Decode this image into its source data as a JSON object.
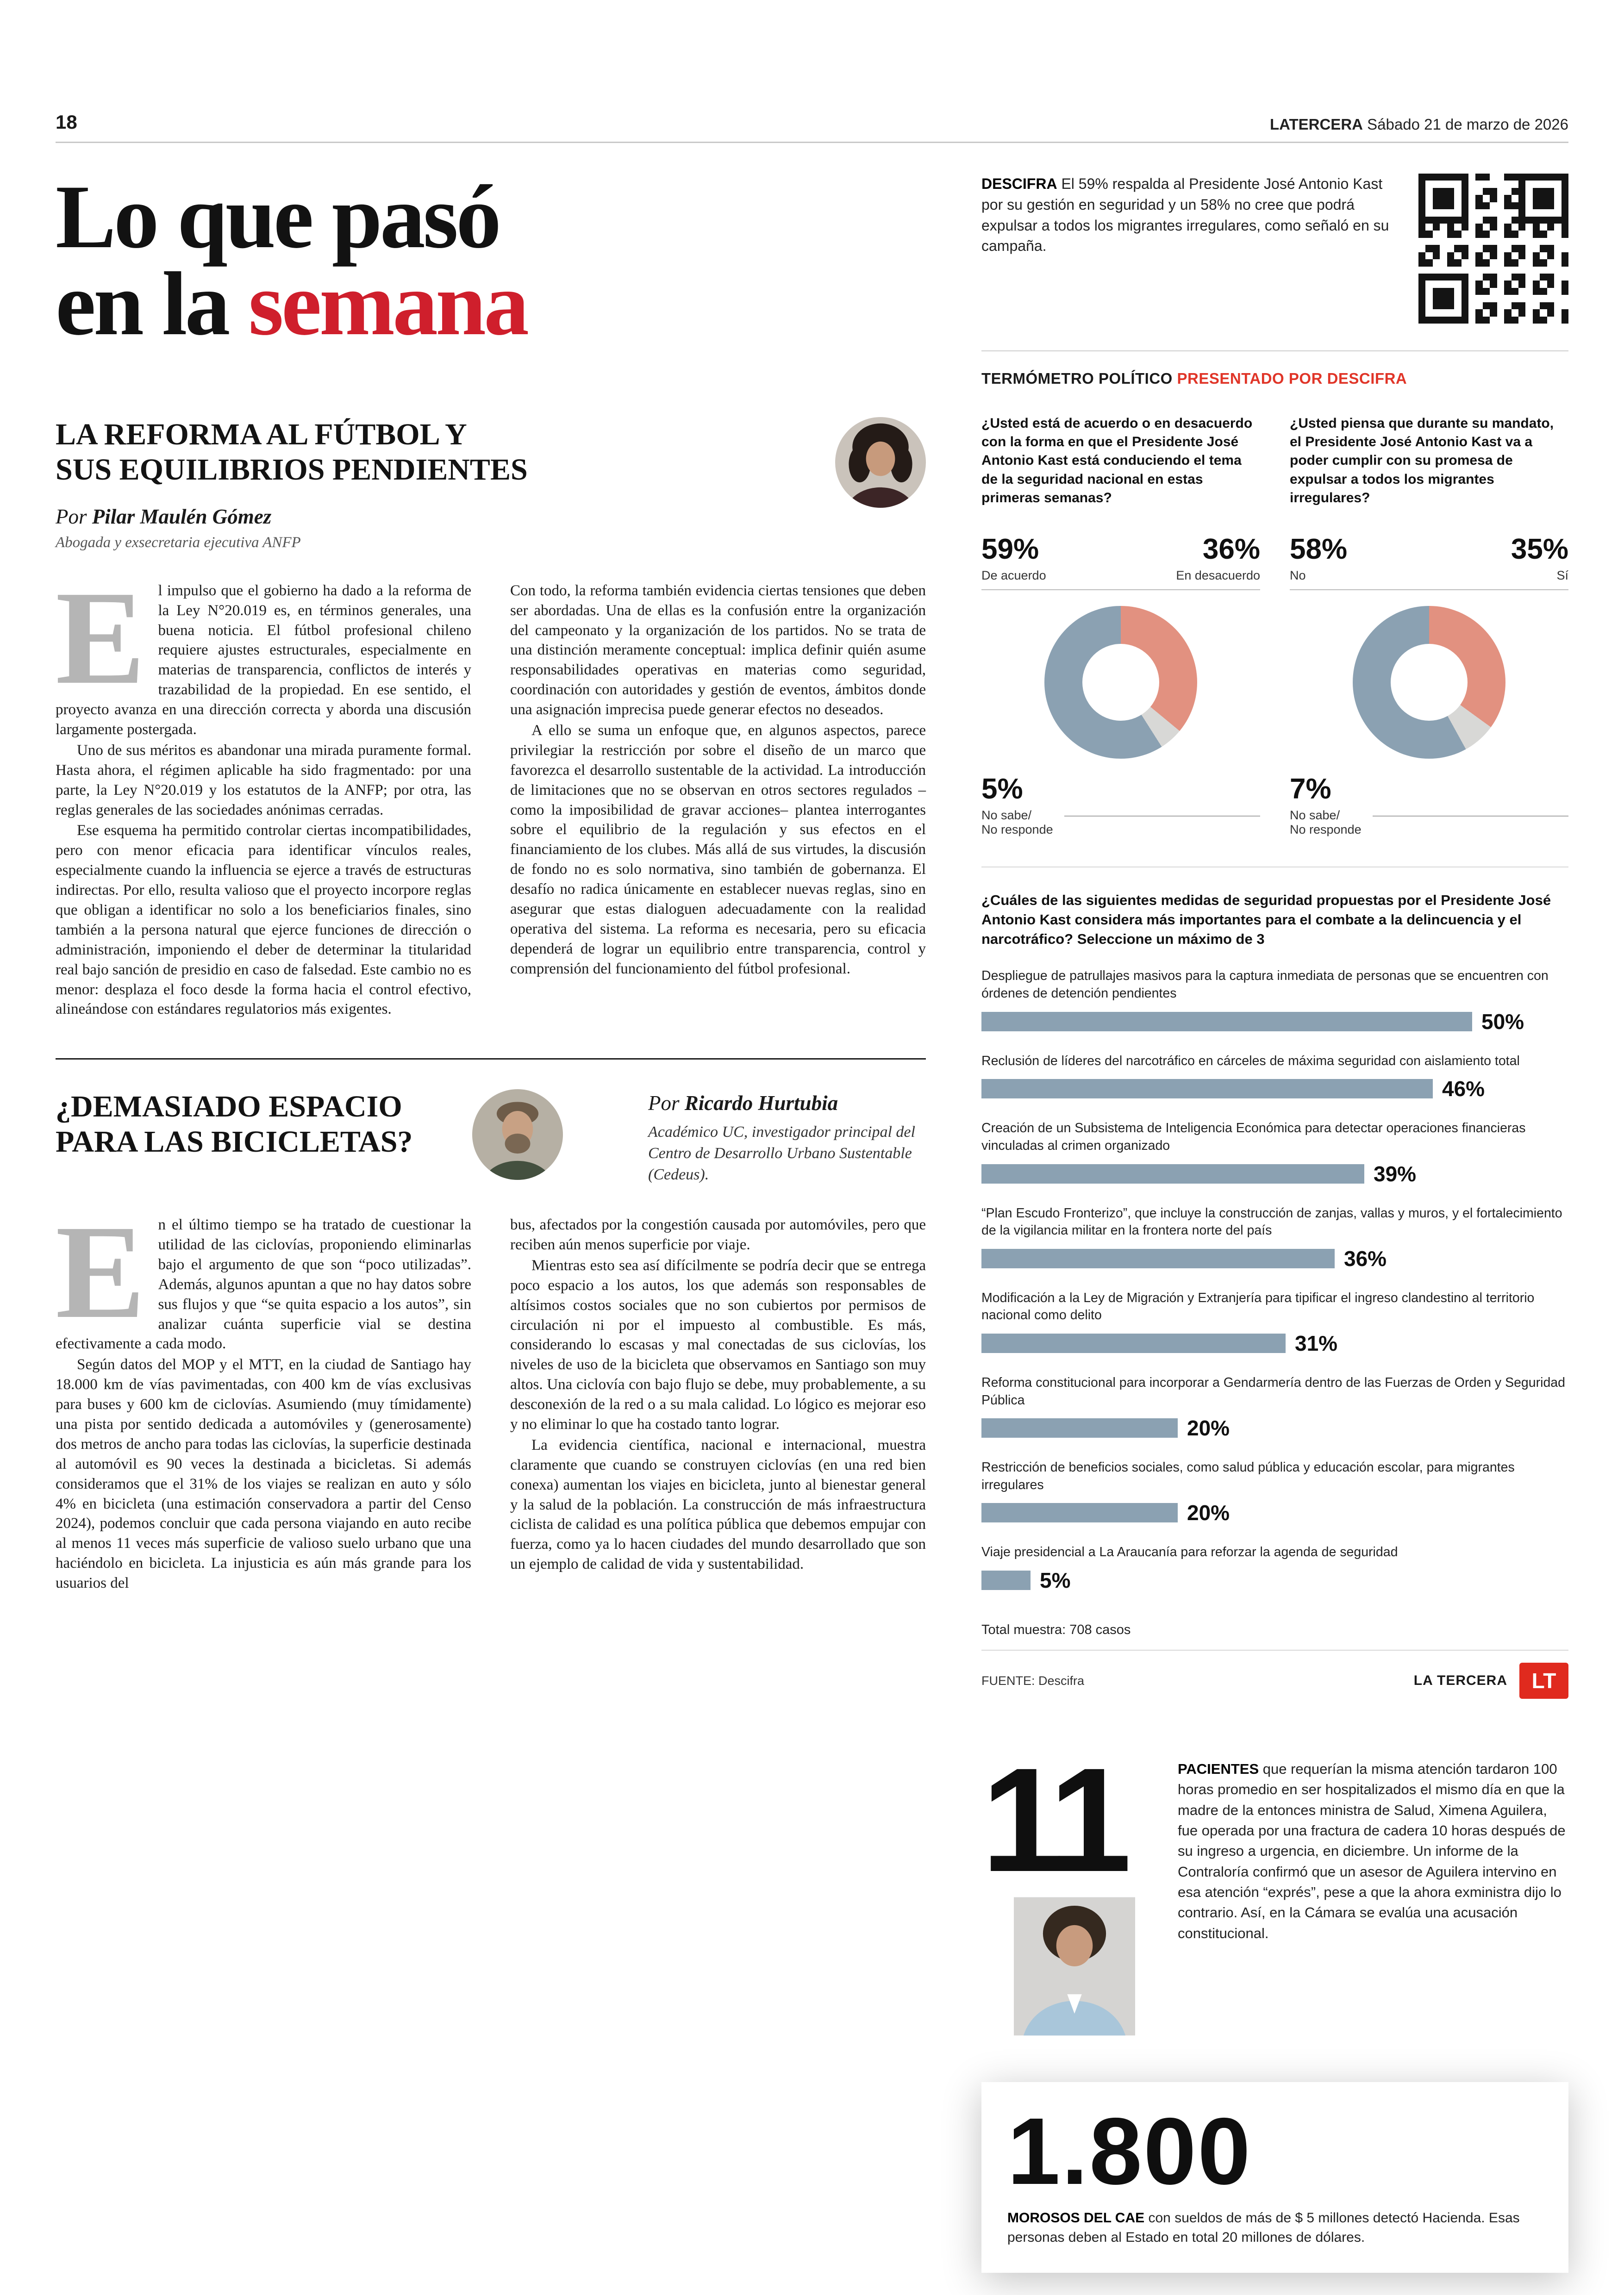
{
  "page": {
    "number": "18",
    "masthead": "LATERCERA",
    "date": " Sábado 21 de marzo de 2026"
  },
  "headline": {
    "line1": "Lo que pasó",
    "line2_black": "en la ",
    "line2_red": "semana"
  },
  "article1": {
    "title_line1": "LA REFORMA AL FÚTBOL Y",
    "title_line2": "SUS EQUILIBRIOS PENDIENTES",
    "byline_prefix": "Por ",
    "author": "Pilar Maulén Gómez",
    "author_role": "Abogada y exsecretaria ejecutiva ANFP",
    "dropcap": "E",
    "col1": [
      "l impulso que el gobierno ha dado a la reforma de la Ley N°20.019 es, en términos generales, una buena noticia. El fútbol profesional chileno requiere ajustes estructurales, especialmente en materias de transparencia, conflictos de interés y trazabilidad de la propiedad. En ese sentido, el proyecto avanza en una dirección correcta y aborda una discusión largamente postergada.",
      "Uno de sus méritos es abandonar una mirada puramente formal. Hasta ahora, el régimen aplicable ha sido fragmentado: por una parte, la Ley N°20.019 y los estatutos de la ANFP; por otra, las reglas generales de las sociedades anónimas cerradas.",
      "Ese esquema ha permitido controlar ciertas incompatibilidades, pero con menor eficacia para identificar vínculos reales, especialmente cuando la influencia se ejerce a través de estructuras indirectas. Por ello, resulta valioso que el proyecto incorpore reglas que obligan a identificar no solo a los beneficiarios finales, sino también a la persona natural que ejerce funciones de dirección o administración, imponiendo el deber de determinar la titularidad real bajo sanción de presidio en caso de falsedad. Este cambio no es menor: desplaza el foco desde la forma hacia el control efectivo, alineándose con estándares regulatorios más exigentes."
    ],
    "col2": [
      "Con todo, la reforma también evidencia ciertas tensiones que deben ser abordadas. Una de ellas es la confusión entre la organización del campeonato y la organización de los partidos. No se trata de una distinción meramente conceptual: implica definir quién asume responsabilidades operativas en materias como seguridad, coordinación con autoridades y gestión de eventos, ámbitos donde una asignación imprecisa puede generar efectos no deseados.",
      "A ello se suma un enfoque que, en algunos aspectos, parece privilegiar la restricción por sobre el diseño de un marco que favorezca el desarrollo sustentable de la actividad. La introducción de limitaciones que no se observan en otros sectores regulados –como la imposibilidad de gravar acciones– plantea interrogantes sobre el equilibrio de la regulación y sus efectos en el financiamiento de los clubes. Más allá de sus virtudes, la discusión de fondo no es solo normativa, sino también de gobernanza. El desafío no radica únicamente en establecer nuevas reglas, sino en asegurar que estas dialoguen adecuadamente con la realidad operativa del sistema. La reforma es necesaria, pero su eficacia dependerá de lograr un equilibrio entre transparencia, control y comprensión del funcionamiento del fútbol profesional."
    ]
  },
  "article2": {
    "title_line1": "¿DEMASIADO ESPACIO",
    "title_line2": "PARA LAS BICICLETAS?",
    "byline_prefix": "Por ",
    "author": "Ricardo Hurtubia",
    "author_role": "Académico UC, investigador principal del Centro de Desarrollo Urbano Sustentable (Cedeus).",
    "dropcap": "E",
    "col1": [
      "n el último tiempo se ha tratado de cuestionar la utilidad de las ciclovías, proponiendo eliminarlas bajo el argumento de que son “poco utilizadas”. Además, algunos apuntan a que no hay datos sobre sus flujos y que “se quita espacio a los autos”, sin analizar cuánta superficie vial se destina efectivamente a cada modo.",
      "Según datos del MOP y el MTT, en la ciudad de Santiago hay 18.000 km de vías pavimentadas, con 400 km de vías exclusivas para buses y 600 km de ciclovías. Asumiendo (muy tímidamente) una pista por sentido dedicada a automóviles y (generosamente) dos metros de ancho para todas las ciclovías, la superficie destinada al automóvil es 90 veces la destinada a bicicletas. Si además consideramos que el 31% de los viajes se realizan en auto y sólo 4% en bicicleta (una estimación conservadora a partir del Censo 2024), podemos concluir que cada persona viajando en auto recibe al menos 11 veces más superficie de valioso suelo urbano que una haciéndolo en bicicleta. La injusticia es aún más grande para los usuarios del"
    ],
    "col2": [
      "bus, afectados por la congestión causada por automóviles, pero que reciben aún menos superficie por viaje.",
      "Mientras esto sea así difícilmente se podría decir que se entrega poco espacio a los autos, los que además son responsables de altísimos costos sociales que no son cubiertos por permisos de circulación ni por el impuesto al combustible. Es más, considerando lo escasas y mal conectadas de sus ciclovías, los niveles de uso de la bicicleta que observamos en Santiago son muy altos. Una ciclovía con bajo flujo se debe, muy probablemente, a su desconexión de la red o a su mala calidad. Lo lógico es mejorar eso y no eliminar lo que ha costado tanto lograr.",
      "La evidencia científica, nacional e internacional, muestra claramente que cuando se construyen ciclovías (en una red bien conexa) aumentan los viajes en bicicleta, junto al bienestar general y la salud de la población. La construcción de más infraestructura ciclista de calidad es una política pública que debemos empujar con fuerza, como ya lo hacen ciudades del mundo desarrollado que son un ejemplo de calidad de vida y sustentabilidad."
    ]
  },
  "descifra": {
    "brand": "DESCIFRA",
    "text": " El 59% respalda al Presidente José Antonio Kast por su gestión en seguridad y un 58% no cree que podrá expulsar a todos los migrantes irregulares, como señaló en su campaña."
  },
  "termometro": {
    "title": "TERMÓMETRO POLÍTICO ",
    "presented_by": "PRESENTADO POR DESCIFRA"
  },
  "footer": {
    "brand": "LA TERCERA",
    "logo": "LT"
  },
  "eleven": {
    "number": "11",
    "lead": "PACIENTES",
    "text": " que requerían la misma atención tardaron 100 horas promedio en ser hospitalizados el mismo día en que la madre de la entonces ministra de Salud, Ximena Aguilera, fue operada por una fractura de cadera 10 horas después de su ingreso a urgencia, en diciembre. Un informe de la Contraloría confirmó que un asesor de Aguilera intervino en esa atención “exprés”, pese a que la ahora exministra dijo lo contrario. Así, en la Cámara se evalúa una acusación constitucional."
  },
  "card": {
    "number": "1.800",
    "lead": "MOROSOS DEL CAE",
    "text": " con sueldos de más de $ 5 millones detectó Hacienda. Esas personas deben al Estado en total 20 millones de dólares."
  },
  "colors": {
    "accent_red": "#cf1f2c",
    "bar_blue": "#8ba1b2",
    "salmon": "#e29180",
    "light_gray": "#d8d8d6"
  },
  "chart_data": [
    {
      "type": "pie",
      "subtype": "donut",
      "title": "¿Usted está de acuerdo o en desacuerdo con la forma en que el Presidente José Antonio Kast está conduciendo el tema de la seguridad nacional en estas primeras semanas?",
      "slices": [
        {
          "label": "De acuerdo",
          "value": 59,
          "color": "#8ba1b2"
        },
        {
          "label": "En desacuerdo",
          "value": 36,
          "color": "#e29180"
        },
        {
          "label": "No sabe/ No responde",
          "value": 5,
          "color": "#d8d8d6"
        }
      ]
    },
    {
      "type": "pie",
      "subtype": "donut",
      "title": "¿Usted piensa que durante su mandato, el Presidente José Antonio Kast va a poder cumplir con su promesa de expulsar a todos los migrantes irregulares?",
      "slices": [
        {
          "label": "No",
          "value": 58,
          "color": "#8ba1b2"
        },
        {
          "label": "Sí",
          "value": 35,
          "color": "#e29180"
        },
        {
          "label": "No sabe/ No responde",
          "value": 7,
          "color": "#d8d8d6"
        }
      ]
    },
    {
      "type": "bar",
      "title": "¿Cuáles de las siguientes medidas de seguridad propuestas por el Presidente José Antonio Kast considera más importantes para el combate a la delincuencia y el narcotráfico? Seleccione un máximo de 3",
      "categories": [
        "Despliegue de patrullajes masivos para la captura inmediata de personas que se encuentren con órdenes de detención pendientes",
        "Reclusión de líderes del narcotráfico en cárceles de máxima seguridad con aislamiento total",
        "Creación de un Subsistema de Inteligencia Económica para detectar operaciones financieras vinculadas al crimen organizado",
        "“Plan Escudo Fronterizo”, que incluye la construcción de zanjas, vallas y muros, y el fortalecimiento de la vigilancia militar en la frontera norte del país",
        "Modificación a la Ley de Migración y Extranjería para tipificar el ingreso clandestino al territorio nacional como delito",
        "Reforma constitucional para incorporar a Gendarmería dentro de las Fuerzas de Orden y Seguridad Pública",
        "Restricción de beneficios sociales, como salud pública y educación escolar, para migrantes irregulares",
        "Viaje presidencial a La Araucanía para reforzar la agenda de seguridad"
      ],
      "values": [
        50,
        46,
        39,
        36,
        31,
        20,
        20,
        5
      ],
      "bar_color": "#8ba1b2",
      "xlim": [
        0,
        50
      ],
      "note": "Total muestra: 708 casos",
      "source": "FUENTE: Descifra"
    }
  ]
}
